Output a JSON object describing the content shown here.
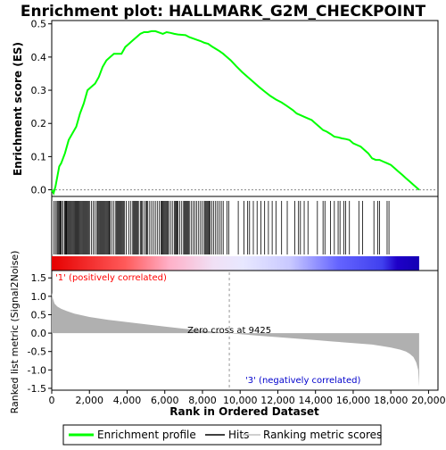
{
  "chart_data": {
    "type": "line",
    "title": "Enrichment plot: HALLMARK_G2M_CHECKPOINT",
    "es_panel": {
      "ylabel": "Enrichment score (ES)",
      "ylim": [
        -0.02,
        0.51
      ],
      "yticks": [
        "0.0",
        "0.1",
        "0.2",
        "0.3",
        "0.4",
        "0.5"
      ],
      "ytick_values": [
        0.0,
        0.1,
        0.2,
        0.3,
        0.4,
        0.5
      ],
      "series": [
        {
          "name": "Enrichment profile",
          "color": "#00ff00",
          "x": [
            0,
            100,
            200,
            300,
            400,
            500,
            700,
            900,
            1100,
            1300,
            1500,
            1700,
            1900,
            2100,
            2300,
            2500,
            2700,
            2900,
            3100,
            3300,
            3500,
            3700,
            3900,
            4100,
            4300,
            4500,
            4700,
            4900,
            5100,
            5300,
            5500,
            5700,
            5900,
            6100,
            6300,
            6500,
            6700,
            6900,
            7100,
            7300,
            7500,
            7700,
            7900,
            8100,
            8300,
            8500,
            8700,
            8900,
            9100,
            9300,
            9500,
            9800,
            10100,
            10400,
            10700,
            11000,
            11300,
            11600,
            11900,
            12200,
            12500,
            12800,
            13000,
            13200,
            13400,
            13600,
            13800,
            14000,
            14200,
            14400,
            14600,
            14800,
            15000,
            15200,
            15400,
            15600,
            15800,
            16000,
            16200,
            16400,
            16600,
            16800,
            17000,
            17200,
            17400,
            17600,
            17800,
            18000,
            18200,
            18400,
            18600,
            18800,
            19000,
            19200,
            19400,
            19500
          ],
          "y": [
            0.0,
            -0.01,
            0.01,
            0.04,
            0.07,
            0.08,
            0.11,
            0.15,
            0.17,
            0.19,
            0.23,
            0.26,
            0.3,
            0.31,
            0.32,
            0.34,
            0.37,
            0.39,
            0.4,
            0.41,
            0.41,
            0.41,
            0.43,
            0.44,
            0.45,
            0.46,
            0.47,
            0.475,
            0.475,
            0.478,
            0.478,
            0.474,
            0.47,
            0.475,
            0.473,
            0.47,
            0.468,
            0.467,
            0.466,
            0.46,
            0.456,
            0.452,
            0.448,
            0.443,
            0.44,
            0.432,
            0.425,
            0.418,
            0.41,
            0.4,
            0.39,
            0.372,
            0.355,
            0.34,
            0.325,
            0.31,
            0.296,
            0.283,
            0.272,
            0.263,
            0.252,
            0.24,
            0.23,
            0.225,
            0.22,
            0.215,
            0.21,
            0.2,
            0.19,
            0.18,
            0.175,
            0.168,
            0.16,
            0.158,
            0.155,
            0.153,
            0.15,
            0.14,
            0.135,
            0.13,
            0.12,
            0.11,
            0.095,
            0.09,
            0.09,
            0.085,
            0.08,
            0.075,
            0.065,
            0.055,
            0.045,
            0.035,
            0.025,
            0.015,
            0.005,
            0.0
          ]
        }
      ],
      "hits": [
        120,
        200,
        280,
        330,
        380,
        430,
        470,
        520,
        600,
        680,
        720,
        760,
        800,
        850,
        900,
        950,
        1000,
        1050,
        1100,
        1150,
        1200,
        1250,
        1300,
        1350,
        1400,
        1450,
        1500,
        1550,
        1600,
        1650,
        1700,
        1750,
        1800,
        1850,
        1900,
        1950,
        2000,
        2100,
        2200,
        2300,
        2400,
        2450,
        2500,
        2550,
        2600,
        2650,
        2700,
        2750,
        2800,
        2850,
        2900,
        2950,
        3000,
        3050,
        3100,
        3200,
        3300,
        3400,
        3450,
        3500,
        3550,
        3600,
        3650,
        3700,
        3750,
        3800,
        3850,
        3950,
        4100,
        4200,
        4300,
        4350,
        4400,
        4450,
        4500,
        4550,
        4600,
        4700,
        4750,
        4800,
        4900,
        5000,
        5050,
        5100,
        5200,
        5300,
        5400,
        5500,
        5600,
        5700,
        5800,
        5850,
        5900,
        5950,
        6000,
        6050,
        6100,
        6150,
        6200,
        6300,
        6400,
        6500,
        6550,
        6600,
        6650,
        6700,
        6800,
        6900,
        7000,
        7050,
        7100,
        7150,
        7200,
        7250,
        7300,
        7400,
        7500,
        7600,
        7700,
        7800,
        7900,
        8000,
        8100,
        8150,
        8200,
        8250,
        8300,
        8350,
        8400,
        8500,
        8600,
        8700,
        8800,
        8900,
        9000,
        9100,
        9300,
        9400,
        9900,
        10200,
        10400,
        10500,
        10700,
        10900,
        11100,
        11300,
        11500,
        11700,
        11900,
        12200,
        12500,
        12900,
        13100,
        13200,
        13400,
        13600,
        14100,
        14400,
        14500,
        14800,
        15000,
        15200,
        15300,
        15500,
        15600,
        15800,
        16300,
        16500,
        17100,
        17300,
        17400,
        17800,
        17900
      ]
    },
    "metric_panel": {
      "ylabel": "Ranked list metric (Signal2Noise)",
      "ylim": [
        -1.55,
        1.7
      ],
      "yticks": [
        "1.5",
        "1.0",
        "0.5",
        "0.0",
        "-0.5",
        "-1.0",
        "-1.5"
      ],
      "ytick_values": [
        1.5,
        1.0,
        0.5,
        0.0,
        -0.5,
        -1.0,
        -1.5
      ],
      "profile_x": [
        0,
        50,
        150,
        300,
        500,
        800,
        1200,
        2000,
        3000,
        4000,
        5000,
        6000,
        7000,
        8000,
        9000,
        9425,
        10000,
        11000,
        12000,
        13000,
        14000,
        15000,
        16000,
        17000,
        17500,
        18000,
        18500,
        18800,
        19000,
        19200,
        19350,
        19450,
        19500
      ],
      "profile_y": [
        1.1,
        0.95,
        0.8,
        0.72,
        0.66,
        0.6,
        0.53,
        0.44,
        0.36,
        0.3,
        0.24,
        0.18,
        0.12,
        0.07,
        0.02,
        0.0,
        -0.03,
        -0.07,
        -0.11,
        -0.15,
        -0.19,
        -0.23,
        -0.27,
        -0.31,
        -0.35,
        -0.39,
        -0.45,
        -0.5,
        -0.56,
        -0.65,
        -0.8,
        -1.0,
        -1.45
      ],
      "zero_cross": 9425,
      "annotations": {
        "positive": "'1' (positively correlated)",
        "negative": "'3' (negatively correlated)",
        "zero_cross": "Zero cross at 9425"
      },
      "annotation_colors": {
        "positive": "#ff0000",
        "negative": "#0000cc",
        "zero_cross": "#000000"
      }
    },
    "xlabel": "Rank in Ordered Dataset",
    "xlim": [
      0,
      20500
    ],
    "xticks": [
      "0",
      "2,000",
      "4,000",
      "6,000",
      "8,000",
      "10,000",
      "12,000",
      "14,000",
      "16,000",
      "18,000",
      "20,000"
    ],
    "xtick_values": [
      0,
      2000,
      4000,
      6000,
      8000,
      10000,
      12000,
      14000,
      16000,
      18000,
      20000
    ],
    "n_genes": 19500,
    "legend": {
      "placement": "bottom",
      "items": [
        {
          "label": "Enrichment profile",
          "color": "#00ff00"
        },
        {
          "label": "Hits",
          "color": "#000000"
        },
        {
          "label": "Ranking metric scores",
          "color": "#c0c0c0"
        }
      ]
    }
  }
}
